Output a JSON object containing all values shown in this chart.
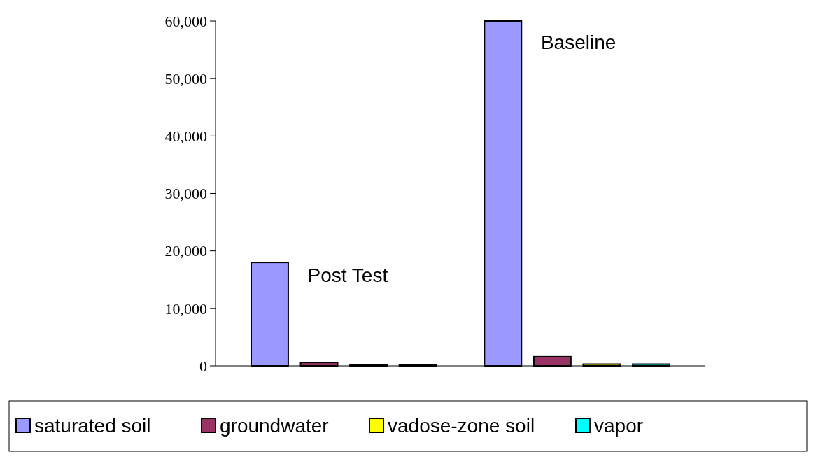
{
  "chart_data": {
    "type": "bar",
    "categories": [
      "Post Test",
      "Baseline"
    ],
    "series": [
      {
        "name": "saturated soil",
        "color": "#9999ff",
        "values": [
          18000,
          60000
        ]
      },
      {
        "name": "groundwater",
        "color": "#993366",
        "values": [
          600,
          1600
        ]
      },
      {
        "name": "vadose-zone soil",
        "color": "#ffff00",
        "values": [
          200,
          300
        ]
      },
      {
        "name": "vapor",
        "color": "#00ffff",
        "values": [
          200,
          300
        ]
      }
    ],
    "ylim": [
      0,
      60000
    ],
    "yticks": [
      {
        "value": 0,
        "label": "0"
      },
      {
        "value": 10000,
        "label": "10,000"
      },
      {
        "value": 20000,
        "label": "20,000"
      },
      {
        "value": 30000,
        "label": "30,000"
      },
      {
        "value": 40000,
        "label": "40,000"
      },
      {
        "value": 50000,
        "label": "50,000"
      },
      {
        "value": 60000,
        "label": "60,000"
      }
    ],
    "grid": false,
    "legend": "bottom"
  }
}
